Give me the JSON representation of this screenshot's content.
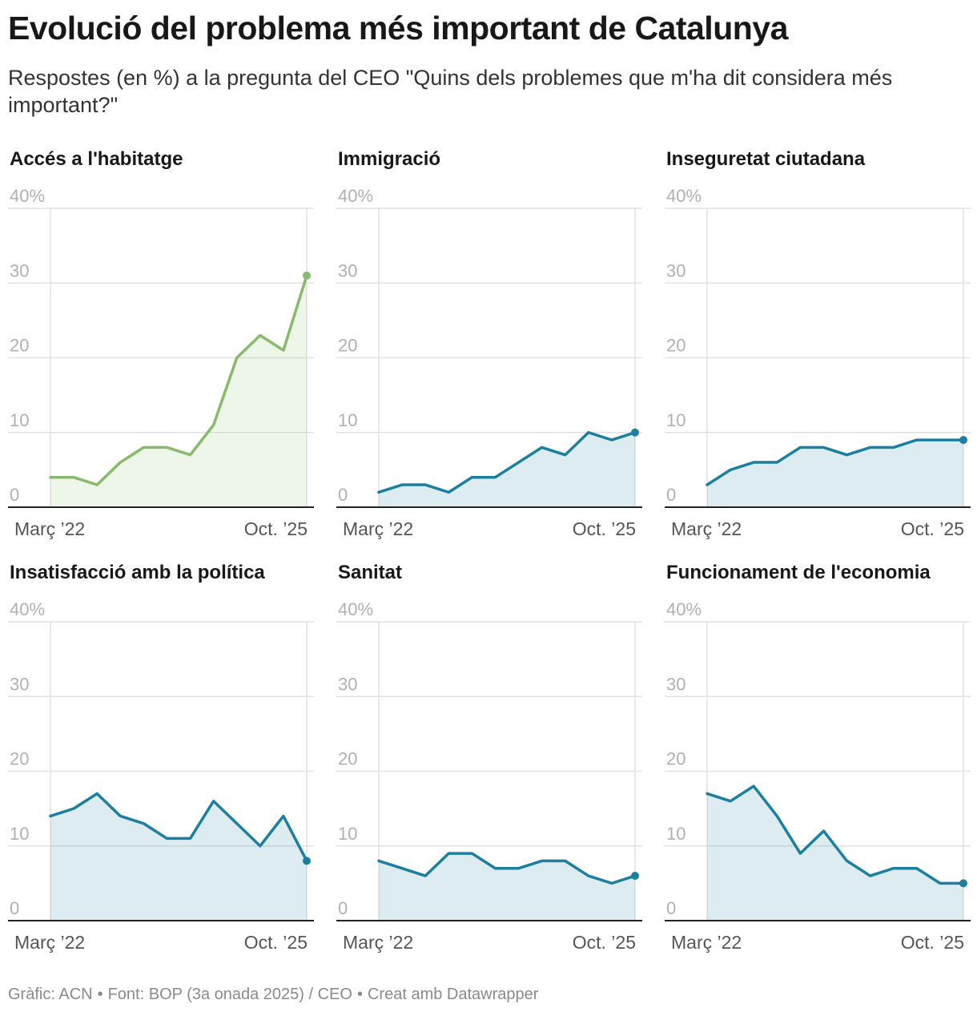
{
  "title": "Evolució del problema més important de Catalunya",
  "subtitle": "Respostes (en %) a la pregunta del CEO \"Quins dels problemes que m'ha dit considera més important?\"",
  "footer": {
    "chart_credit": "Gràfic: ACN",
    "source": "Font: BOP (3a onada 2025) / CEO",
    "tool": "Creat amb Datawrapper",
    "separator": "•"
  },
  "colors": {
    "habitatge": "#8ab96d",
    "default": "#1d7fa0",
    "grid": "#e2e2e2",
    "axis": "#222222",
    "tick": "#b0b0b0"
  },
  "chart_data": [
    {
      "type": "area",
      "title": "Accés a l'habitatge",
      "color": "#8ab96d",
      "x_start_label": "Març ’22",
      "x_end_label": "Oct. ’25",
      "ylim": [
        0,
        40
      ],
      "yticks": [
        "40%",
        "30",
        "20",
        "10",
        "0"
      ],
      "x": [
        0,
        1,
        2,
        3,
        4,
        5,
        6,
        7,
        8,
        9,
        10,
        11
      ],
      "values": [
        4,
        4,
        3,
        6,
        8,
        8,
        7,
        11,
        20,
        23,
        21,
        31
      ]
    },
    {
      "type": "area",
      "title": "Immigració",
      "color": "#1d7fa0",
      "x_start_label": "Març ’22",
      "x_end_label": "Oct. ’25",
      "ylim": [
        0,
        40
      ],
      "yticks": [
        "40%",
        "30",
        "20",
        "10",
        "0"
      ],
      "x": [
        0,
        1,
        2,
        3,
        4,
        5,
        6,
        7,
        8,
        9,
        10,
        11
      ],
      "values": [
        2,
        3,
        3,
        2,
        4,
        4,
        6,
        8,
        7,
        10,
        9,
        10
      ]
    },
    {
      "type": "area",
      "title": "Inseguretat ciutadana",
      "color": "#1d7fa0",
      "x_start_label": "Març ’22",
      "x_end_label": "Oct. ’25",
      "ylim": [
        0,
        40
      ],
      "yticks": [
        "40%",
        "30",
        "20",
        "10",
        "0"
      ],
      "x": [
        0,
        1,
        2,
        3,
        4,
        5,
        6,
        7,
        8,
        9,
        10,
        11
      ],
      "values": [
        3,
        5,
        6,
        6,
        8,
        8,
        7,
        8,
        8,
        9,
        9,
        9
      ]
    },
    {
      "type": "area",
      "title": "Insatisfacció amb la política",
      "color": "#1d7fa0",
      "x_start_label": "Març ’22",
      "x_end_label": "Oct. ’25",
      "ylim": [
        0,
        40
      ],
      "yticks": [
        "40%",
        "30",
        "20",
        "10",
        "0"
      ],
      "x": [
        0,
        1,
        2,
        3,
        4,
        5,
        6,
        7,
        8,
        9,
        10,
        11
      ],
      "values": [
        14,
        15,
        17,
        14,
        13,
        11,
        11,
        16,
        13,
        10,
        14,
        8
      ]
    },
    {
      "type": "area",
      "title": "Sanitat",
      "color": "#1d7fa0",
      "x_start_label": "Març ’22",
      "x_end_label": "Oct. ’25",
      "ylim": [
        0,
        40
      ],
      "yticks": [
        "40%",
        "30",
        "20",
        "10",
        "0"
      ],
      "x": [
        0,
        1,
        2,
        3,
        4,
        5,
        6,
        7,
        8,
        9,
        10,
        11
      ],
      "values": [
        8,
        7,
        6,
        9,
        9,
        7,
        7,
        8,
        8,
        6,
        5,
        6
      ]
    },
    {
      "type": "area",
      "title": "Funcionament de l'economia",
      "color": "#1d7fa0",
      "x_start_label": "Març ’22",
      "x_end_label": "Oct. ’25",
      "ylim": [
        0,
        40
      ],
      "yticks": [
        "40%",
        "30",
        "20",
        "10",
        "0"
      ],
      "x": [
        0,
        1,
        2,
        3,
        4,
        5,
        6,
        7,
        8,
        9,
        10,
        11
      ],
      "values": [
        17,
        16,
        18,
        14,
        9,
        12,
        8,
        6,
        7,
        7,
        5,
        5
      ]
    }
  ]
}
